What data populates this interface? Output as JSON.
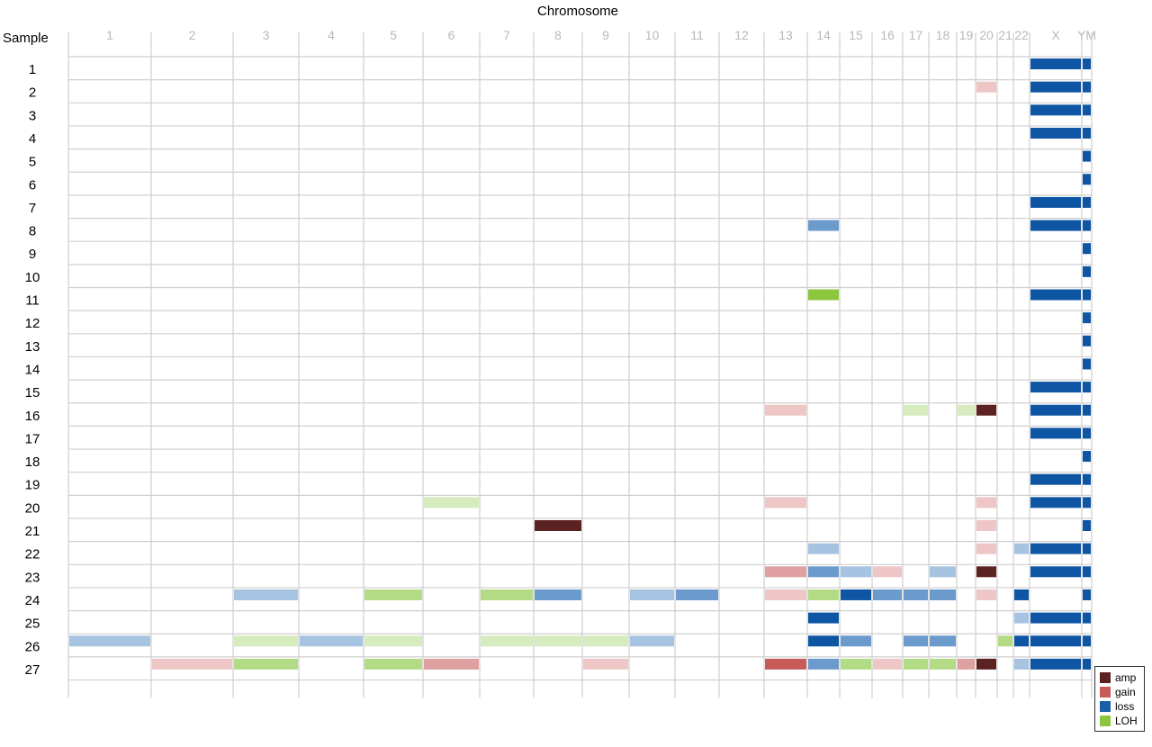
{
  "chart_data": {
    "type": "heatmap",
    "title": "Chromosome",
    "row_header": "Sample",
    "columns": [
      "1",
      "2",
      "3",
      "4",
      "5",
      "6",
      "7",
      "8",
      "9",
      "10",
      "11",
      "12",
      "13",
      "14",
      "15",
      "16",
      "17",
      "18",
      "19",
      "20",
      "21",
      "22",
      "X",
      "YM"
    ],
    "rows": [
      "1",
      "2",
      "3",
      "4",
      "5",
      "6",
      "7",
      "8",
      "9",
      "10",
      "11",
      "12",
      "13",
      "14",
      "15",
      "16",
      "17",
      "18",
      "19",
      "20",
      "21",
      "22",
      "23",
      "24",
      "25",
      "26",
      "27"
    ],
    "legend": [
      {
        "label": "amp",
        "color": "#5c2222"
      },
      {
        "label": "gain",
        "color": "#c85a5a"
      },
      {
        "label": "loss",
        "color": "#1a5fa8"
      },
      {
        "label": "LOH",
        "color": "#8cc63f"
      }
    ],
    "events": [
      {
        "sample": 1,
        "chrom": "X",
        "type": "loss",
        "level": 3
      },
      {
        "sample": 1,
        "chrom": "YM",
        "type": "loss",
        "level": 3
      },
      {
        "sample": 2,
        "chrom": "20",
        "type": "gain",
        "level": 1
      },
      {
        "sample": 2,
        "chrom": "X",
        "type": "loss",
        "level": 3
      },
      {
        "sample": 2,
        "chrom": "YM",
        "type": "loss",
        "level": 3
      },
      {
        "sample": 3,
        "chrom": "X",
        "type": "loss",
        "level": 3
      },
      {
        "sample": 3,
        "chrom": "YM",
        "type": "loss",
        "level": 3
      },
      {
        "sample": 4,
        "chrom": "X",
        "type": "loss",
        "level": 3
      },
      {
        "sample": 4,
        "chrom": "YM",
        "type": "loss",
        "level": 3
      },
      {
        "sample": 5,
        "chrom": "YM",
        "type": "loss",
        "level": 3
      },
      {
        "sample": 6,
        "chrom": "YM",
        "type": "loss",
        "level": 3
      },
      {
        "sample": 7,
        "chrom": "X",
        "type": "loss",
        "level": 3
      },
      {
        "sample": 7,
        "chrom": "YM",
        "type": "loss",
        "level": 3
      },
      {
        "sample": 8,
        "chrom": "14",
        "type": "loss",
        "level": 2
      },
      {
        "sample": 8,
        "chrom": "X",
        "type": "loss",
        "level": 3
      },
      {
        "sample": 8,
        "chrom": "YM",
        "type": "loss",
        "level": 3
      },
      {
        "sample": 9,
        "chrom": "YM",
        "type": "loss",
        "level": 3
      },
      {
        "sample": 10,
        "chrom": "YM",
        "type": "loss",
        "level": 3
      },
      {
        "sample": 11,
        "chrom": "14",
        "type": "LOH",
        "level": 3
      },
      {
        "sample": 11,
        "chrom": "X",
        "type": "loss",
        "level": 3
      },
      {
        "sample": 11,
        "chrom": "YM",
        "type": "loss",
        "level": 3
      },
      {
        "sample": 12,
        "chrom": "YM",
        "type": "loss",
        "level": 3
      },
      {
        "sample": 13,
        "chrom": "YM",
        "type": "loss",
        "level": 3
      },
      {
        "sample": 14,
        "chrom": "YM",
        "type": "loss",
        "level": 3
      },
      {
        "sample": 15,
        "chrom": "X",
        "type": "loss",
        "level": 3
      },
      {
        "sample": 15,
        "chrom": "YM",
        "type": "loss",
        "level": 3
      },
      {
        "sample": 16,
        "chrom": "13",
        "type": "gain",
        "level": 1
      },
      {
        "sample": 16,
        "chrom": "17",
        "type": "LOH",
        "level": 1
      },
      {
        "sample": 16,
        "chrom": "19",
        "type": "LOH",
        "level": 1
      },
      {
        "sample": 16,
        "chrom": "20",
        "type": "amp",
        "level": 3
      },
      {
        "sample": 16,
        "chrom": "X",
        "type": "loss",
        "level": 3
      },
      {
        "sample": 16,
        "chrom": "YM",
        "type": "loss",
        "level": 3
      },
      {
        "sample": 17,
        "chrom": "X",
        "type": "loss",
        "level": 3
      },
      {
        "sample": 17,
        "chrom": "YM",
        "type": "loss",
        "level": 3
      },
      {
        "sample": 18,
        "chrom": "YM",
        "type": "loss",
        "level": 3
      },
      {
        "sample": 19,
        "chrom": "X",
        "type": "loss",
        "level": 3
      },
      {
        "sample": 19,
        "chrom": "YM",
        "type": "loss",
        "level": 3
      },
      {
        "sample": 20,
        "chrom": "6",
        "type": "LOH",
        "level": 1
      },
      {
        "sample": 20,
        "chrom": "13",
        "type": "gain",
        "level": 1
      },
      {
        "sample": 20,
        "chrom": "20",
        "type": "gain",
        "level": 1
      },
      {
        "sample": 20,
        "chrom": "X",
        "type": "loss",
        "level": 3
      },
      {
        "sample": 20,
        "chrom": "YM",
        "type": "loss",
        "level": 3
      },
      {
        "sample": 21,
        "chrom": "8",
        "type": "amp",
        "level": 3
      },
      {
        "sample": 21,
        "chrom": "20",
        "type": "gain",
        "level": 1
      },
      {
        "sample": 21,
        "chrom": "YM",
        "type": "loss",
        "level": 3
      },
      {
        "sample": 22,
        "chrom": "14",
        "type": "loss",
        "level": 1
      },
      {
        "sample": 22,
        "chrom": "20",
        "type": "gain",
        "level": 1
      },
      {
        "sample": 22,
        "chrom": "22",
        "type": "loss",
        "level": 1
      },
      {
        "sample": 22,
        "chrom": "X",
        "type": "loss",
        "level": 3
      },
      {
        "sample": 22,
        "chrom": "YM",
        "type": "loss",
        "level": 3
      },
      {
        "sample": 23,
        "chrom": "13",
        "type": "gain",
        "level": 2
      },
      {
        "sample": 23,
        "chrom": "14",
        "type": "loss",
        "level": 2
      },
      {
        "sample": 23,
        "chrom": "15",
        "type": "loss",
        "level": 1
      },
      {
        "sample": 23,
        "chrom": "16",
        "type": "gain",
        "level": 1
      },
      {
        "sample": 23,
        "chrom": "18",
        "type": "loss",
        "level": 1
      },
      {
        "sample": 23,
        "chrom": "20",
        "type": "amp",
        "level": 3
      },
      {
        "sample": 23,
        "chrom": "X",
        "type": "loss",
        "level": 3
      },
      {
        "sample": 23,
        "chrom": "YM",
        "type": "loss",
        "level": 3
      },
      {
        "sample": 24,
        "chrom": "3",
        "type": "loss",
        "level": 1
      },
      {
        "sample": 24,
        "chrom": "5",
        "type": "LOH",
        "level": 2
      },
      {
        "sample": 24,
        "chrom": "7",
        "type": "LOH",
        "level": 2
      },
      {
        "sample": 24,
        "chrom": "8",
        "type": "loss",
        "level": 2
      },
      {
        "sample": 24,
        "chrom": "10",
        "type": "loss",
        "level": 1
      },
      {
        "sample": 24,
        "chrom": "11",
        "type": "loss",
        "level": 2
      },
      {
        "sample": 24,
        "chrom": "13",
        "type": "gain",
        "level": 1
      },
      {
        "sample": 24,
        "chrom": "14",
        "type": "LOH",
        "level": 2
      },
      {
        "sample": 24,
        "chrom": "15",
        "type": "loss",
        "level": 3
      },
      {
        "sample": 24,
        "chrom": "16",
        "type": "loss",
        "level": 2
      },
      {
        "sample": 24,
        "chrom": "17",
        "type": "loss",
        "level": 2
      },
      {
        "sample": 24,
        "chrom": "18",
        "type": "loss",
        "level": 2
      },
      {
        "sample": 24,
        "chrom": "20",
        "type": "gain",
        "level": 1
      },
      {
        "sample": 24,
        "chrom": "22",
        "type": "loss",
        "level": 3
      },
      {
        "sample": 24,
        "chrom": "YM",
        "type": "loss",
        "level": 3
      },
      {
        "sample": 25,
        "chrom": "14",
        "type": "loss",
        "level": 3
      },
      {
        "sample": 25,
        "chrom": "22",
        "type": "loss",
        "level": 1
      },
      {
        "sample": 25,
        "chrom": "X",
        "type": "loss",
        "level": 3
      },
      {
        "sample": 25,
        "chrom": "YM",
        "type": "loss",
        "level": 3
      },
      {
        "sample": 26,
        "chrom": "1",
        "type": "loss",
        "level": 1
      },
      {
        "sample": 26,
        "chrom": "3",
        "type": "LOH",
        "level": 1
      },
      {
        "sample": 26,
        "chrom": "4",
        "type": "loss",
        "level": 1
      },
      {
        "sample": 26,
        "chrom": "5",
        "type": "LOH",
        "level": 1
      },
      {
        "sample": 26,
        "chrom": "7",
        "type": "LOH",
        "level": 1
      },
      {
        "sample": 26,
        "chrom": "8",
        "type": "LOH",
        "level": 1
      },
      {
        "sample": 26,
        "chrom": "9",
        "type": "LOH",
        "level": 1
      },
      {
        "sample": 26,
        "chrom": "10",
        "type": "loss",
        "level": 1
      },
      {
        "sample": 26,
        "chrom": "14",
        "type": "loss",
        "level": 3
      },
      {
        "sample": 26,
        "chrom": "15",
        "type": "loss",
        "level": 2
      },
      {
        "sample": 26,
        "chrom": "17",
        "type": "loss",
        "level": 2
      },
      {
        "sample": 26,
        "chrom": "18",
        "type": "loss",
        "level": 2
      },
      {
        "sample": 26,
        "chrom": "21",
        "type": "LOH",
        "level": 2
      },
      {
        "sample": 26,
        "chrom": "22",
        "type": "loss",
        "level": 3
      },
      {
        "sample": 26,
        "chrom": "X",
        "type": "loss",
        "level": 3
      },
      {
        "sample": 26,
        "chrom": "YM",
        "type": "loss",
        "level": 3
      },
      {
        "sample": 27,
        "chrom": "2",
        "type": "gain",
        "level": 1
      },
      {
        "sample": 27,
        "chrom": "3",
        "type": "LOH",
        "level": 2
      },
      {
        "sample": 27,
        "chrom": "5",
        "type": "LOH",
        "level": 2
      },
      {
        "sample": 27,
        "chrom": "6",
        "type": "gain",
        "level": 2
      },
      {
        "sample": 27,
        "chrom": "9",
        "type": "gain",
        "level": 1
      },
      {
        "sample": 27,
        "chrom": "13",
        "type": "gain",
        "level": 3
      },
      {
        "sample": 27,
        "chrom": "14",
        "type": "loss",
        "level": 2
      },
      {
        "sample": 27,
        "chrom": "15",
        "type": "LOH",
        "level": 2
      },
      {
        "sample": 27,
        "chrom": "16",
        "type": "gain",
        "level": 1
      },
      {
        "sample": 27,
        "chrom": "17",
        "type": "LOH",
        "level": 2
      },
      {
        "sample": 27,
        "chrom": "18",
        "type": "LOH",
        "level": 2
      },
      {
        "sample": 27,
        "chrom": "19",
        "type": "gain",
        "level": 2
      },
      {
        "sample": 27,
        "chrom": "20",
        "type": "amp",
        "level": 3
      },
      {
        "sample": 27,
        "chrom": "22",
        "type": "loss",
        "level": 1
      },
      {
        "sample": 27,
        "chrom": "X",
        "type": "loss",
        "level": 3
      },
      {
        "sample": 27,
        "chrom": "YM",
        "type": "loss",
        "level": 3
      }
    ]
  }
}
